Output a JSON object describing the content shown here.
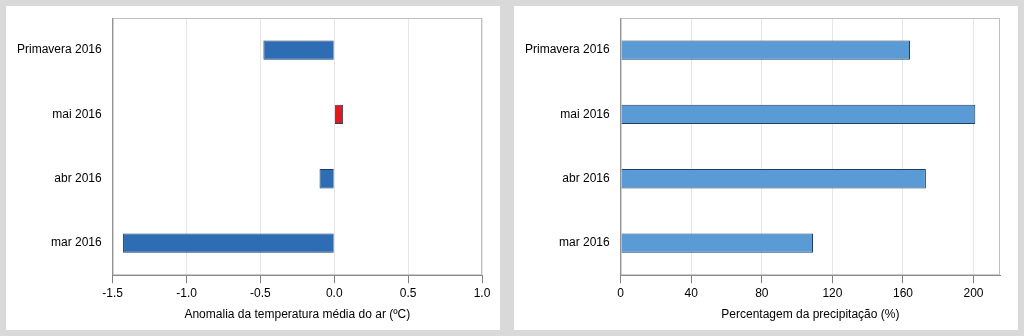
{
  "chart_data": [
    {
      "type": "bar",
      "orientation": "horizontal",
      "categories": [
        "Primavera 2016",
        "mai 2016",
        "abr 2016",
        "mar 2016"
      ],
      "values": [
        -0.48,
        0.06,
        -0.1,
        -1.43
      ],
      "colors": [
        "#2e6db4",
        "#e31a1c",
        "#2e6db4",
        "#2e6db4"
      ],
      "xlabel": "Anomalia da temperatura média do ar (ºC)",
      "xlim": [
        -1.5,
        1.0
      ],
      "xticks": [
        -1.5,
        {
          "value": -1.0,
          "label": "-1.0"
        },
        -0.5,
        {
          "value": 0.0,
          "label": "0.0"
        },
        0.5,
        {
          "value": 1.0,
          "label": "1.0"
        }
      ],
      "grid": true
    },
    {
      "type": "bar",
      "orientation": "horizontal",
      "categories": [
        "Primavera 2016",
        "mai 2016",
        "abr 2016",
        "mar 2016"
      ],
      "values": [
        164,
        201,
        173,
        109
      ],
      "color": "#5b9bd5",
      "xlabel": "Percentagem da precipitação (%)",
      "xlim": [
        0,
        215
      ],
      "xticks": [
        0,
        40,
        80,
        120,
        160,
        200
      ],
      "grid": true
    }
  ]
}
